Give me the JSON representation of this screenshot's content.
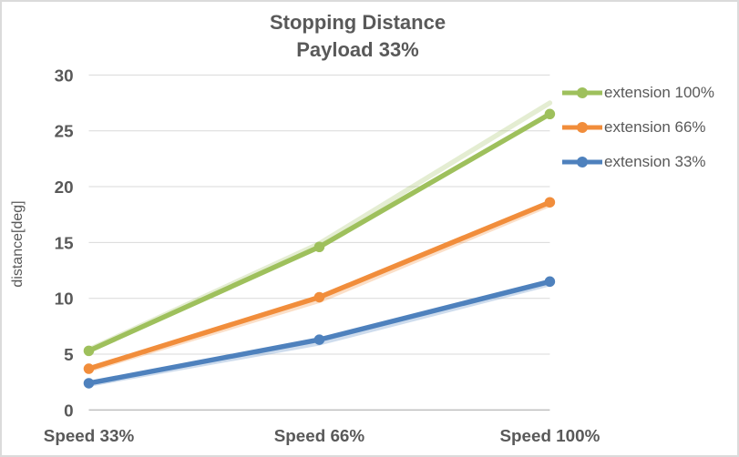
{
  "frame": {
    "background": "#FFFFFF",
    "border_color": "#DBDBDB"
  },
  "chart_data": {
    "type": "line",
    "title_lines": [
      "Stopping Distance",
      "Payload 33%"
    ],
    "title": "Stopping Distance Payload 33%",
    "xlabel": "",
    "ylabel": "distance[deg]",
    "categories": [
      "Speed 33%",
      "Speed 66%",
      "Speed 100%"
    ],
    "series": [
      {
        "name": "extension 100%",
        "color": "#9EC05C",
        "values": [
          5.3,
          14.6,
          26.5
        ]
      },
      {
        "name": "extension 66%",
        "color": "#F18D3B",
        "values": [
          3.7,
          10.1,
          18.6
        ]
      },
      {
        "name": "extension 33%",
        "color": "#4E81BD",
        "values": [
          2.4,
          6.3,
          11.5
        ]
      }
    ],
    "shadow_series": [
      {
        "follows": "extension 100%",
        "color": "#9EC05C",
        "values": [
          5.4,
          14.9,
          27.5
        ]
      },
      {
        "follows": "extension 66%",
        "color": "#F18D3B",
        "values": [
          3.6,
          9.8,
          18.4
        ]
      },
      {
        "follows": "extension 33%",
        "color": "#4E81BD",
        "values": [
          2.3,
          6.0,
          11.3
        ]
      }
    ],
    "ylim": [
      0,
      30
    ],
    "yticks": [
      0,
      5,
      10,
      15,
      20,
      25,
      30
    ],
    "grid": true,
    "legend_position": "right",
    "marker": "circle",
    "colors": {
      "text": "#595959",
      "gridline": "#D9D9D9",
      "axis_line": "#BFBFBF"
    }
  }
}
